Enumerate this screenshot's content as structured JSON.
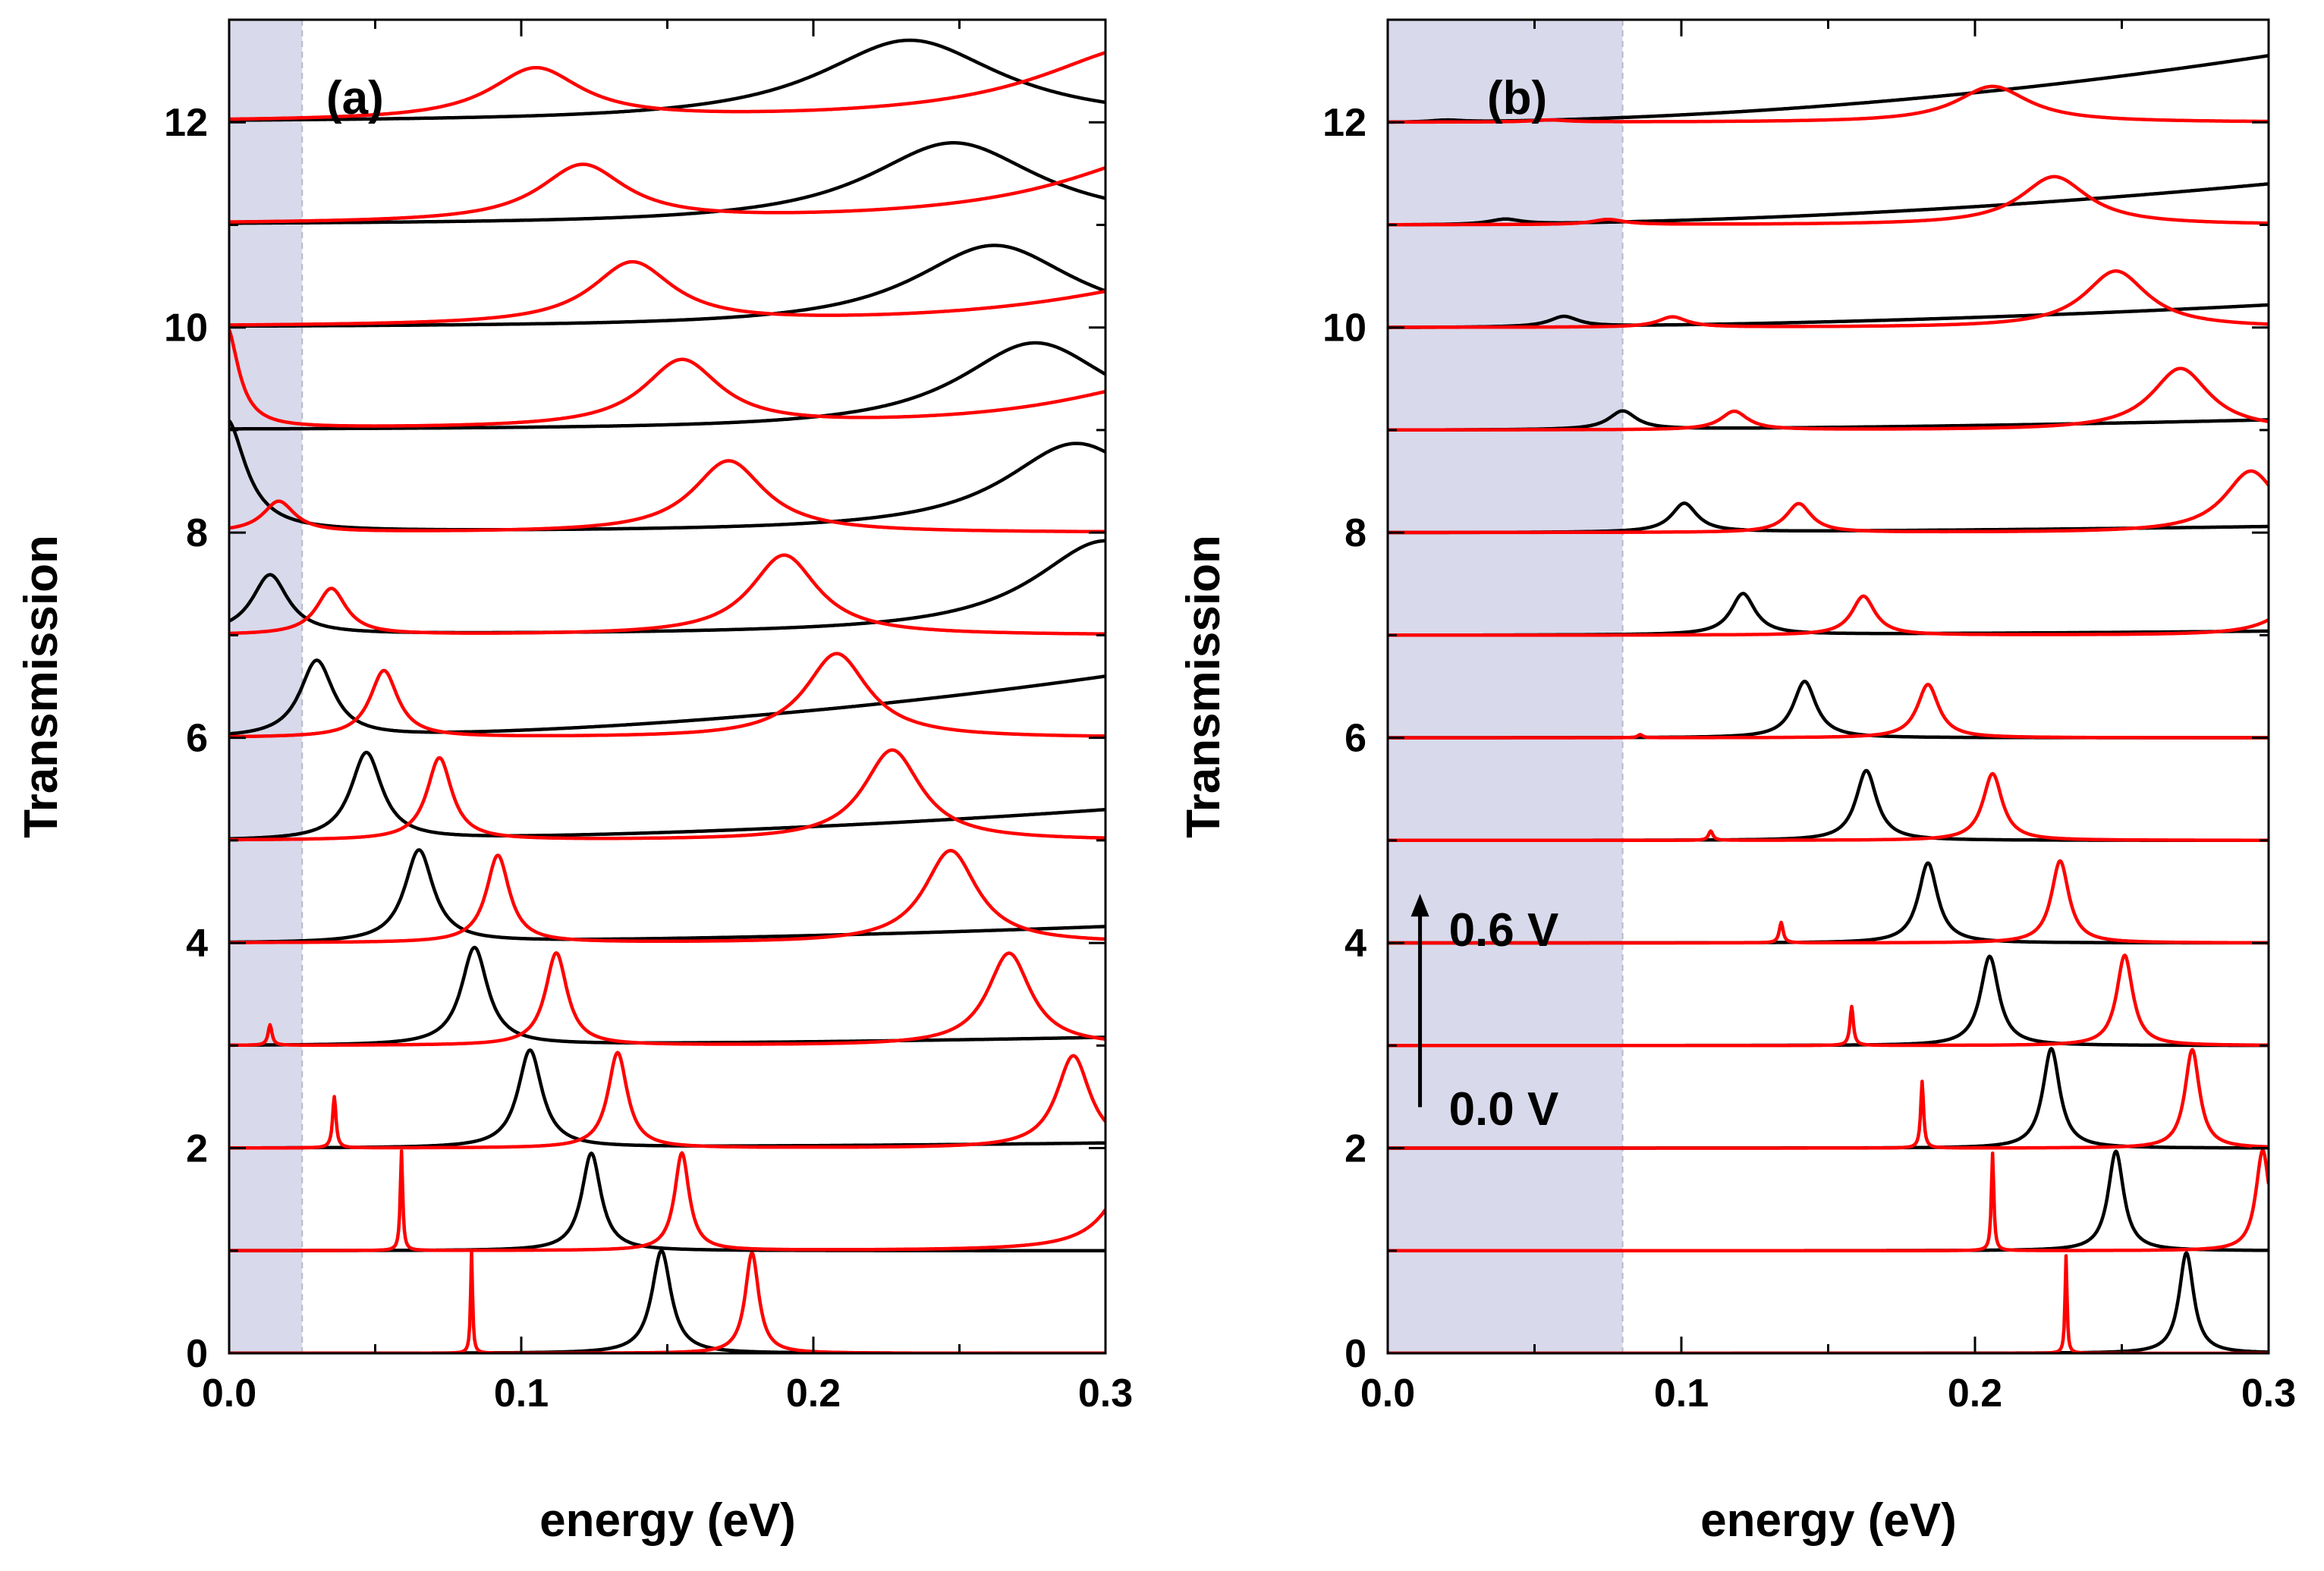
{
  "chart_data": [
    {
      "type": "line",
      "panel_label": "(a)",
      "xlabel": "energy (eV)",
      "ylabel": "Transmission",
      "xlim": [
        0.0,
        0.3
      ],
      "ylim": [
        0,
        13
      ],
      "x_ticks": [
        "0.0",
        "0.1",
        "0.2",
        "0.3"
      ],
      "x_tick_values": [
        0.0,
        0.1,
        0.2,
        0.3
      ],
      "y_ticks": [
        "0",
        "2",
        "4",
        "6",
        "8",
        "10",
        "12"
      ],
      "y_tick_values": [
        0,
        2,
        4,
        6,
        8,
        10,
        12
      ],
      "shaded_region": [
        0.0,
        0.025
      ],
      "colors": {
        "series_a": "#000000",
        "series_b": "#ff0000",
        "shade": "#d8d9ea"
      },
      "description_of_series": "Stacked transmission curves, offset by 1 per bias step; each curve has Lorentzian resonance peaks",
      "offsets": [
        {
          "offset": 0,
          "black_peaks": [
            [
              0.148,
              0.004,
              1.0
            ]
          ],
          "black_bg": [
            0,
            0
          ],
          "red_peaks": [
            [
              0.083,
              0.0004,
              1.0
            ],
            [
              0.179,
              0.0028,
              0.98
            ]
          ],
          "red_bg": [
            0,
            0
          ]
        },
        {
          "offset": 1,
          "black_peaks": [
            [
              0.124,
              0.004,
              0.95
            ]
          ],
          "black_bg": [
            0,
            0
          ],
          "red_peaks": [
            [
              0.059,
              0.0005,
              0.97
            ],
            [
              0.155,
              0.003,
              0.95
            ],
            [
              0.31,
              0.01,
              0.8
            ]
          ],
          "red_bg": [
            0,
            0
          ]
        },
        {
          "offset": 2,
          "black_peaks": [
            [
              0.103,
              0.005,
              0.95
            ]
          ],
          "black_bg": [
            0.0,
            0.05
          ],
          "red_peaks": [
            [
              0.036,
              0.0007,
              0.5
            ],
            [
              0.133,
              0.004,
              0.93
            ],
            [
              0.289,
              0.007,
              0.9
            ]
          ],
          "red_bg": [
            0,
            0
          ]
        },
        {
          "offset": 3,
          "black_peaks": [
            [
              0.084,
              0.0055,
              0.95
            ]
          ],
          "black_bg": [
            0.0,
            0.08
          ],
          "red_peaks": [
            [
              0.014,
              0.0008,
              0.2
            ],
            [
              0.112,
              0.0045,
              0.9
            ],
            [
              0.267,
              0.009,
              0.9
            ]
          ],
          "red_bg": [
            0,
            0
          ]
        },
        {
          "offset": 4,
          "black_peaks": [
            [
              0.065,
              0.006,
              0.9
            ]
          ],
          "black_bg": [
            0.0,
            0.16
          ],
          "red_peaks": [
            [
              0.092,
              0.0048,
              0.85
            ],
            [
              0.247,
              0.011,
              0.9
            ]
          ],
          "red_bg": [
            0,
            0
          ]
        },
        {
          "offset": 5,
          "black_peaks": [
            [
              0.047,
              0.0065,
              0.85
            ]
          ],
          "black_bg": [
            0.0,
            0.3
          ],
          "red_peaks": [
            [
              0.072,
              0.0052,
              0.8
            ],
            [
              0.227,
              0.012,
              0.88
            ]
          ],
          "red_bg": [
            0,
            0
          ]
        },
        {
          "offset": 6,
          "black_peaks": [
            [
              0.03,
              0.007,
              0.75
            ]
          ],
          "black_bg": [
            0.0,
            0.6
          ],
          "red_peaks": [
            [
              0.053,
              0.0058,
              0.65
            ],
            [
              0.208,
              0.013,
              0.82
            ]
          ],
          "red_bg": [
            0,
            0
          ]
        },
        {
          "offset": 7,
          "black_peaks": [
            [
              0.014,
              0.0075,
              0.58
            ],
            [
              0.3,
              0.03,
              0.9
            ]
          ],
          "black_bg": [
            0.0,
            0.02
          ],
          "red_peaks": [
            [
              0.035,
              0.0062,
              0.45
            ],
            [
              0.19,
              0.014,
              0.78
            ]
          ],
          "red_bg": [
            0,
            0
          ]
        },
        {
          "offset": 8,
          "black_peaks": [
            [
              -0.001,
              0.008,
              1.1
            ],
            [
              0.29,
              0.03,
              0.85
            ]
          ],
          "black_bg": [
            0.0,
            0.02
          ],
          "red_peaks": [
            [
              0.017,
              0.0066,
              0.3
            ],
            [
              0.171,
              0.015,
              0.7
            ]
          ],
          "red_bg": [
            0,
            0
          ]
        },
        {
          "offset": 9,
          "black_peaks": [
            [
              0.276,
              0.032,
              0.85
            ]
          ],
          "black_bg": [
            0.0,
            0.0
          ],
          "red_peaks": [
            [
              -0.001,
              0.005,
              1.0
            ],
            [
              0.155,
              0.016,
              0.65
            ],
            [
              0.33,
              0.05,
              0.5
            ]
          ],
          "red_bg": [
            0,
            0
          ]
        },
        {
          "offset": 10,
          "black_peaks": [
            [
              0.262,
              0.034,
              0.8
            ]
          ],
          "black_bg": [
            0.0,
            0.0
          ],
          "red_peaks": [
            [
              0.138,
              0.017,
              0.6
            ],
            [
              0.34,
              0.06,
              0.5
            ]
          ],
          "red_bg": [
            0,
            0
          ]
        },
        {
          "offset": 11,
          "black_peaks": [
            [
              0.248,
              0.036,
              0.8
            ]
          ],
          "black_bg": [
            0.0,
            0.0
          ],
          "red_peaks": [
            [
              0.121,
              0.018,
              0.55
            ],
            [
              0.33,
              0.05,
              0.75
            ]
          ],
          "red_bg": [
            0,
            0
          ]
        },
        {
          "offset": 12,
          "black_peaks": [
            [
              0.233,
              0.038,
              0.8
            ]
          ],
          "black_bg": [
            0.0,
            0.0
          ],
          "red_peaks": [
            [
              0.105,
              0.019,
              0.5
            ],
            [
              0.315,
              0.045,
              0.75
            ]
          ],
          "red_bg": [
            0,
            0
          ]
        }
      ]
    },
    {
      "type": "line",
      "panel_label": "(b)",
      "xlabel": "energy (eV)",
      "ylabel": "Transmission",
      "xlim": [
        0.0,
        0.3
      ],
      "ylim": [
        0,
        13
      ],
      "x_ticks": [
        "0.0",
        "0.1",
        "0.2",
        "0.3"
      ],
      "x_tick_values": [
        0.0,
        0.1,
        0.2,
        0.3
      ],
      "y_ticks": [
        "0",
        "2",
        "4",
        "6",
        "8",
        "10",
        "12"
      ],
      "y_tick_values": [
        0,
        2,
        4,
        6,
        8,
        10,
        12
      ],
      "shaded_region": [
        0.0,
        0.08
      ],
      "annotations": {
        "top_label": "0.6 V",
        "bottom_label": "0.0 V",
        "arrow_from_y": 2.4,
        "arrow_to_y": 4.45,
        "arrow_x": 0.011
      },
      "colors": {
        "series_a": "#000000",
        "series_b": "#ff0000",
        "shade": "#d8d9ea"
      },
      "offsets": [
        {
          "offset": 0,
          "black_peaks": [
            [
              0.272,
              0.003,
              0.98
            ]
          ],
          "black_bg": [
            0,
            0
          ],
          "red_peaks": [
            [
              0.231,
              0.0004,
              0.95
            ]
          ],
          "red_bg": [
            0,
            0
          ]
        },
        {
          "offset": 1,
          "black_peaks": [
            [
              0.248,
              0.0032,
              0.97
            ]
          ],
          "black_bg": [
            0,
            0
          ],
          "red_peaks": [
            [
              0.206,
              0.0005,
              0.95
            ],
            [
              0.298,
              0.0028,
              0.98
            ]
          ],
          "red_bg": [
            0,
            0
          ]
        },
        {
          "offset": 2,
          "black_peaks": [
            [
              0.226,
              0.0035,
              0.97
            ]
          ],
          "black_bg": [
            0,
            0
          ],
          "red_peaks": [
            [
              0.182,
              0.0006,
              0.65
            ],
            [
              0.274,
              0.003,
              0.96
            ]
          ],
          "red_bg": [
            0,
            0
          ]
        },
        {
          "offset": 3,
          "black_peaks": [
            [
              0.205,
              0.0038,
              0.87
            ]
          ],
          "black_bg": [
            0,
            0
          ],
          "red_peaks": [
            [
              0.158,
              0.0007,
              0.38
            ],
            [
              0.251,
              0.0033,
              0.88
            ]
          ],
          "red_bg": [
            0,
            0
          ]
        },
        {
          "offset": 4,
          "black_peaks": [
            [
              0.184,
              0.004,
              0.78
            ]
          ],
          "black_bg": [
            0,
            0
          ],
          "red_peaks": [
            [
              0.134,
              0.0008,
              0.2
            ],
            [
              0.229,
              0.0036,
              0.8
            ]
          ],
          "red_bg": [
            0,
            0
          ]
        },
        {
          "offset": 5,
          "black_peaks": [
            [
              0.163,
              0.0043,
              0.68
            ]
          ],
          "black_bg": [
            0,
            0
          ],
          "red_peaks": [
            [
              0.11,
              0.0009,
              0.09
            ],
            [
              0.206,
              0.004,
              0.65
            ]
          ],
          "red_bg": [
            0,
            0
          ]
        },
        {
          "offset": 6,
          "black_peaks": [
            [
              0.142,
              0.0047,
              0.55
            ]
          ],
          "black_bg": [
            0,
            0
          ],
          "red_peaks": [
            [
              0.086,
              0.001,
              0.03
            ],
            [
              0.184,
              0.0044,
              0.52
            ]
          ],
          "red_bg": [
            0,
            0
          ]
        },
        {
          "offset": 7,
          "black_peaks": [
            [
              0.121,
              0.005,
              0.4
            ]
          ],
          "black_bg": [
            0,
            0.04
          ],
          "red_peaks": [
            [
              0.162,
              0.0048,
              0.38
            ],
            [
              0.31,
              0.01,
              0.3
            ]
          ],
          "red_bg": [
            0,
            0
          ]
        },
        {
          "offset": 8,
          "black_peaks": [
            [
              0.101,
              0.0053,
              0.28
            ]
          ],
          "black_bg": [
            0,
            0.06
          ],
          "red_peaks": [
            [
              0.14,
              0.0052,
              0.28
            ],
            [
              0.294,
              0.011,
              0.6
            ]
          ],
          "red_bg": [
            0,
            0
          ]
        },
        {
          "offset": 9,
          "black_peaks": [
            [
              0.08,
              0.0057,
              0.18
            ]
          ],
          "black_bg": [
            0,
            0.1
          ],
          "red_peaks": [
            [
              0.118,
              0.0056,
              0.18
            ],
            [
              0.27,
              0.012,
              0.6
            ]
          ],
          "red_bg": [
            0,
            0
          ]
        },
        {
          "offset": 10,
          "black_peaks": [
            [
              0.06,
              0.006,
              0.1
            ]
          ],
          "black_bg": [
            0,
            0.22
          ],
          "red_peaks": [
            [
              0.097,
              0.006,
              0.1
            ],
            [
              0.248,
              0.013,
              0.55
            ]
          ],
          "red_bg": [
            0,
            0
          ]
        },
        {
          "offset": 11,
          "black_peaks": [
            [
              0.04,
              0.0065,
              0.05
            ]
          ],
          "black_bg": [
            0,
            0.4
          ],
          "red_peaks": [
            [
              0.075,
              0.0065,
              0.05
            ],
            [
              0.227,
              0.014,
              0.47
            ]
          ],
          "red_bg": [
            0,
            0
          ]
        },
        {
          "offset": 12,
          "black_peaks": [
            [
              0.02,
              0.007,
              0.02
            ]
          ],
          "black_bg": [
            0,
            0.65
          ],
          "red_peaks": [
            [
              0.055,
              0.007,
              0.02
            ],
            [
              0.206,
              0.015,
              0.35
            ]
          ],
          "red_bg": [
            0,
            0
          ]
        }
      ]
    }
  ]
}
